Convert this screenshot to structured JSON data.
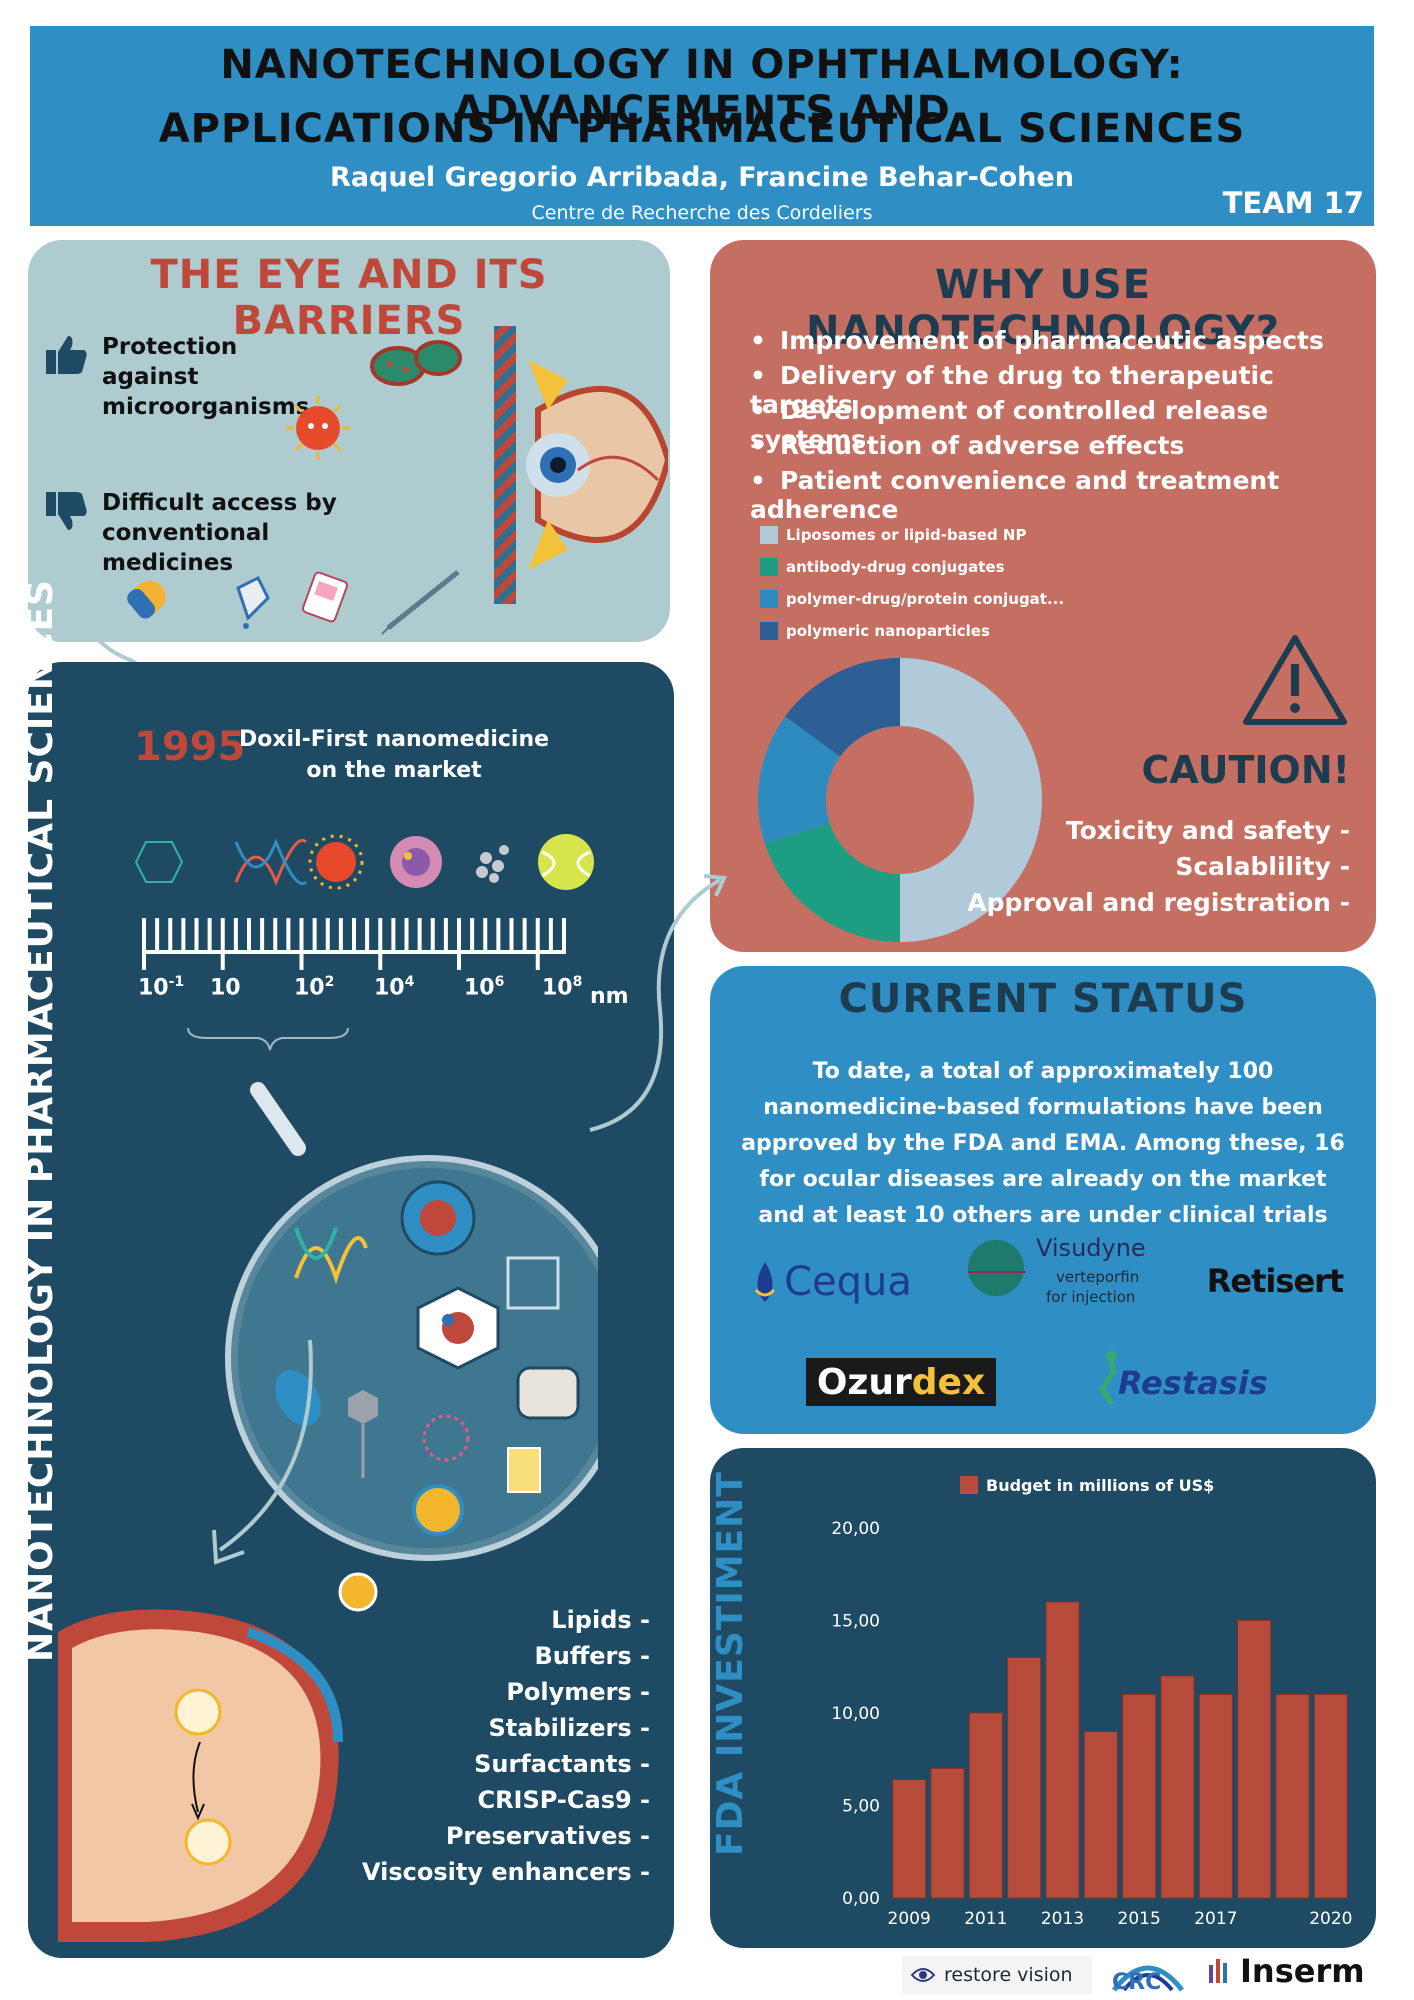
{
  "header": {
    "title_line1": "NANOTECHNOLOGY IN OPHTHALMOLOGY: ADVANCEMENTS AND",
    "title_line2": "APPLICATIONS IN PHARMACEUTICAL SCIENCES",
    "authors": "Raquel Gregorio Arribada, Francine Behar-Cohen",
    "institution": "Centre de Recherche des Cordeliers",
    "team": "TEAM 17"
  },
  "eye_barriers": {
    "title": "THE EYE AND ITS BARRIERS",
    "pro": "Protection against microorganisms",
    "con": "Difficult access by conventional medicines"
  },
  "why": {
    "title": "WHY USE NANOTECHNOLOGY?",
    "bullets": [
      "Improvement of pharmaceutic aspects",
      "Delivery of the drug to therapeutic targets",
      "Development of controlled release systems",
      "Reduction of adverse effects",
      "Patient convenience and treatment adherence"
    ],
    "caution_title": "CAUTION!",
    "caution_items": [
      "Toxicity and safety -",
      "Scalablility -",
      "Approval and registration -"
    ]
  },
  "nano": {
    "title": "NANOTECHNOLOGY IN PHARMACEUTICAL SCIENCES",
    "year": "1995",
    "year_text": "Doxil-First nanomedicine on the market",
    "scale_unit": "nm",
    "scale_base": "10",
    "scale_exponents": [
      "-1",
      "",
      "2",
      "4",
      "6",
      "8"
    ],
    "components": [
      "Lipids -",
      "Buffers -",
      "Polymers -",
      "Stabilizers -",
      "Surfactants -",
      "CRISP-Cas9 -",
      "Preservatives -",
      "Viscosity enhancers -"
    ]
  },
  "status": {
    "title": "CURRENT STATUS",
    "text": "To date, a total of approximately 100 nanomedicine-based formulations have been approved by the FDA and EMA. Among these, 16 for ocular diseases are already on the market and at least 10 others are under clinical trials",
    "logos": {
      "cequa": "Cequa",
      "visudyne": "Visudyne",
      "visudyne_sub1": "verteporfin",
      "visudyne_sub2": "for injection",
      "retisert": "Retisert",
      "ozurdex_a": "Ozur",
      "ozurdex_b": "dex",
      "restasis": "Restasis"
    }
  },
  "fda": {
    "title": "FDA INVESTIMENT"
  },
  "footer": {
    "restore": "restore vision",
    "crc": "CRC",
    "inserm": "Inserm"
  },
  "colors": {
    "header": "#2f8fc4",
    "eye_panel": "#aecbd0",
    "why_panel": "#c56e62",
    "nano_panel": "#1e4b63",
    "bar": "#b84c3c"
  },
  "chart_data": [
    {
      "type": "pie",
      "donut": true,
      "legend": [
        {
          "label": "Liposomes or lipid-based NP",
          "color": "#b1cad9",
          "value": 50
        },
        {
          "label": "antibody-drug conjugates",
          "color": "#1d9e83",
          "value": 20
        },
        {
          "label": "polymer-drug/protein conjugat...",
          "color": "#2e8bbf",
          "value": 15
        },
        {
          "label": "polymeric nanoparticles",
          "color": "#2d5e96",
          "value": 15
        }
      ],
      "legend_position": "top-left"
    },
    {
      "type": "bar",
      "legend": "Budget in millions of US$",
      "categories": [
        "2009",
        "2010",
        "2011",
        "2012",
        "2013",
        "2014",
        "2015",
        "2016",
        "2017",
        "2018",
        "2019",
        "2020"
      ],
      "x_tick_labels": [
        "2009",
        "2011",
        "2013",
        "2015",
        "2017",
        "2020"
      ],
      "values": [
        6.4,
        7.0,
        10.0,
        13.0,
        16.0,
        9.0,
        11.0,
        12.0,
        11.0,
        15.0,
        11.0,
        11.0
      ],
      "y_ticks": [
        "0,00",
        "5,00",
        "10,00",
        "15,00",
        "20,00"
      ],
      "ylim": [
        0,
        20
      ],
      "grid": false
    }
  ]
}
